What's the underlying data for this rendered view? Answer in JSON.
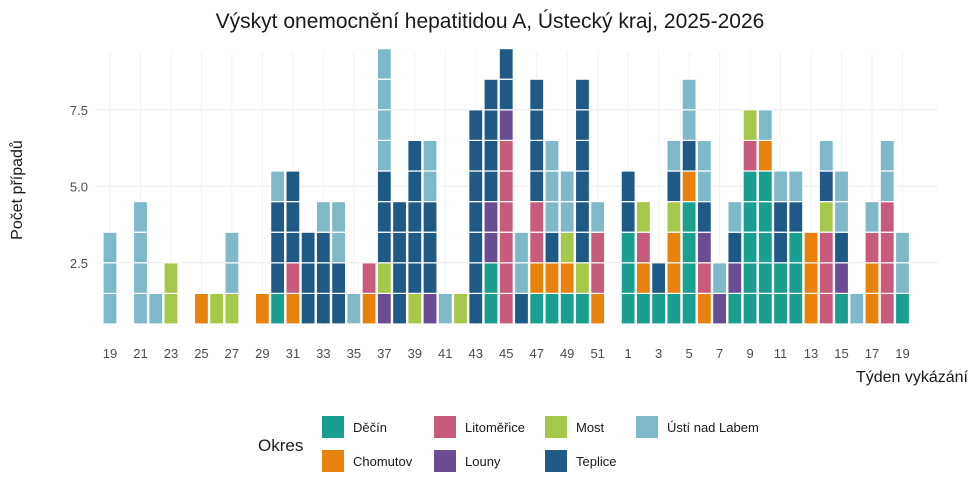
{
  "chart_data": {
    "type": "bar",
    "subtype": "stacked-unit-blocks",
    "title": "Výskyt onemocnění hepatitidou A, Ústecký kraj, 2025-2026",
    "xlabel": "Týden vykázání",
    "ylabel": "Počet případů",
    "ylim": [
      0,
      9.5
    ],
    "yticks": [
      2.5,
      5.0,
      7.5
    ],
    "ytick_labels": [
      "2.5",
      "5.0",
      "7.5"
    ],
    "grid": true,
    "legend": {
      "title": "Okres",
      "position": "bottom",
      "entries": [
        "Děčín",
        "Litoměřice",
        "Most",
        "Ústí nad Labem",
        "Chomutov",
        "Louny",
        "Teplice"
      ]
    },
    "colors": {
      "Děčín": "#1a9e8f",
      "Chomutov": "#e8820c",
      "Litoměřice": "#c85a7c",
      "Louny": "#6a4c93",
      "Most": "#a5c84a",
      "Teplice": "#1e5a85",
      "Ústí nad Labem": "#7fb9c9"
    },
    "x_tick_labels": [
      "19",
      "21",
      "23",
      "25",
      "27",
      "29",
      "31",
      "33",
      "35",
      "37",
      "39",
      "41",
      "43",
      "45",
      "47",
      "49",
      "51",
      "1",
      "3",
      "5",
      "7",
      "9",
      "11",
      "13",
      "15",
      "17",
      "19"
    ],
    "weeks": [
      {
        "label": "19",
        "cases": [
          "Ústí nad Labem",
          "Ústí nad Labem",
          "Ústí nad Labem"
        ]
      },
      {
        "label": "20",
        "cases": []
      },
      {
        "label": "21",
        "cases": [
          "Ústí nad Labem",
          "Ústí nad Labem",
          "Ústí nad Labem",
          "Ústí nad Labem"
        ]
      },
      {
        "label": "22",
        "cases": [
          "Ústí nad Labem"
        ]
      },
      {
        "label": "23",
        "cases": [
          "Most",
          "Most"
        ]
      },
      {
        "label": "24",
        "cases": []
      },
      {
        "label": "25",
        "cases": [
          "Chomutov"
        ]
      },
      {
        "label": "26",
        "cases": [
          "Most"
        ]
      },
      {
        "label": "27",
        "cases": [
          "Most",
          "Ústí nad Labem",
          "Ústí nad Labem"
        ]
      },
      {
        "label": "28",
        "cases": []
      },
      {
        "label": "29",
        "cases": [
          "Chomutov"
        ]
      },
      {
        "label": "30",
        "cases": [
          "Děčín",
          "Teplice",
          "Teplice",
          "Teplice",
          "Ústí nad Labem"
        ]
      },
      {
        "label": "31",
        "cases": [
          "Chomutov",
          "Litoměřice",
          "Teplice",
          "Teplice",
          "Teplice"
        ]
      },
      {
        "label": "32",
        "cases": [
          "Teplice",
          "Teplice",
          "Teplice"
        ]
      },
      {
        "label": "33",
        "cases": [
          "Teplice",
          "Teplice",
          "Teplice",
          "Ústí nad Labem"
        ]
      },
      {
        "label": "34",
        "cases": [
          "Teplice",
          "Teplice",
          "Ústí nad Labem",
          "Ústí nad Labem"
        ]
      },
      {
        "label": "35",
        "cases": [
          "Ústí nad Labem"
        ]
      },
      {
        "label": "36",
        "cases": [
          "Chomutov",
          "Litoměřice"
        ]
      },
      {
        "label": "37",
        "cases": [
          "Louny",
          "Most",
          "Teplice",
          "Teplice",
          "Teplice",
          "Ústí nad Labem",
          "Ústí nad Labem",
          "Ústí nad Labem",
          "Ústí nad Labem"
        ]
      },
      {
        "label": "38",
        "cases": [
          "Teplice",
          "Teplice",
          "Teplice",
          "Teplice"
        ]
      },
      {
        "label": "39",
        "cases": [
          "Most",
          "Teplice",
          "Teplice",
          "Teplice",
          "Teplice",
          "Teplice"
        ]
      },
      {
        "label": "40",
        "cases": [
          "Teplice",
          "Louny",
          "Teplice",
          "Teplice",
          "Ústí nad Labem",
          "Ústí nad Labem"
        ]
      },
      {
        "label": "41",
        "cases": [
          "Ústí nad Labem"
        ]
      },
      {
        "label": "42",
        "cases": [
          "Most"
        ]
      },
      {
        "label": "43",
        "cases": [
          "Teplice",
          "Teplice",
          "Teplice",
          "Teplice",
          "Teplice",
          "Teplice",
          "Teplice"
        ]
      },
      {
        "label": "44",
        "cases": [
          "Děčín",
          "Děčín",
          "Louny",
          "Louny",
          "Teplice",
          "Teplice",
          "Teplice",
          "Teplice"
        ]
      },
      {
        "label": "45",
        "cases": [
          "Litoměřice",
          "Litoměřice",
          "Litoměřice",
          "Litoměřice",
          "Litoměřice",
          "Litoměřice",
          "Louny",
          "Teplice",
          "Teplice"
        ]
      },
      {
        "label": "46",
        "cases": [
          "Teplice",
          "Ústí nad Labem",
          "Ústí nad Labem"
        ]
      },
      {
        "label": "47",
        "cases": [
          "Děčín",
          "Chomutov",
          "Litoměřice",
          "Litoměřice",
          "Teplice",
          "Teplice",
          "Teplice",
          "Teplice"
        ]
      },
      {
        "label": "48",
        "cases": [
          "Děčín",
          "Chomutov",
          "Teplice",
          "Ústí nad Labem",
          "Ústí nad Labem",
          "Ústí nad Labem"
        ]
      },
      {
        "label": "49",
        "cases": [
          "Děčín",
          "Chomutov",
          "Most",
          "Ústí nad Labem",
          "Ústí nad Labem"
        ]
      },
      {
        "label": "50",
        "cases": [
          "Děčín",
          "Most",
          "Teplice",
          "Teplice",
          "Teplice",
          "Teplice",
          "Teplice",
          "Teplice"
        ]
      },
      {
        "label": "51",
        "cases": [
          "Chomutov",
          "Litoměřice",
          "Litoměřice",
          "Ústí nad Labem"
        ]
      },
      {
        "label": "52",
        "cases": []
      },
      {
        "label": "1",
        "cases": [
          "Děčín",
          "Děčín",
          "Děčín",
          "Teplice",
          "Teplice"
        ]
      },
      {
        "label": "2",
        "cases": [
          "Děčín",
          "Chomutov",
          "Litoměřice",
          "Most"
        ]
      },
      {
        "label": "3",
        "cases": [
          "Děčín",
          "Teplice"
        ]
      },
      {
        "label": "4",
        "cases": [
          "Děčín",
          "Chomutov",
          "Chomutov",
          "Most",
          "Teplice",
          "Ústí nad Labem"
        ]
      },
      {
        "label": "5",
        "cases": [
          "Děčín",
          "Děčín",
          "Děčín",
          "Děčín",
          "Chomutov",
          "Teplice",
          "Ústí nad Labem",
          "Ústí nad Labem"
        ]
      },
      {
        "label": "6",
        "cases": [
          "Chomutov",
          "Litoměřice",
          "Louny",
          "Teplice",
          "Ústí nad Labem",
          "Ústí nad Labem"
        ]
      },
      {
        "label": "7",
        "cases": [
          "Louny",
          "Ústí nad Labem"
        ]
      },
      {
        "label": "8",
        "cases": [
          "Děčín",
          "Louny",
          "Teplice",
          "Ústí nad Labem"
        ]
      },
      {
        "label": "9",
        "cases": [
          "Děčín",
          "Děčín",
          "Děčín",
          "Děčín",
          "Děčín",
          "Litoměřice",
          "Most"
        ]
      },
      {
        "label": "10",
        "cases": [
          "Děčín",
          "Děčín",
          "Děčín",
          "Děčín",
          "Děčín",
          "Chomutov",
          "Ústí nad Labem"
        ]
      },
      {
        "label": "11",
        "cases": [
          "Děčín",
          "Děčín",
          "Teplice",
          "Teplice",
          "Ústí nad Labem"
        ]
      },
      {
        "label": "12",
        "cases": [
          "Děčín",
          "Děčín",
          "Děčín",
          "Teplice",
          "Ústí nad Labem"
        ]
      },
      {
        "label": "13",
        "cases": [
          "Chomutov",
          "Chomutov",
          "Chomutov"
        ]
      },
      {
        "label": "14",
        "cases": [
          "Litoměřice",
          "Litoměřice",
          "Litoměřice",
          "Most",
          "Teplice",
          "Ústí nad Labem"
        ]
      },
      {
        "label": "15",
        "cases": [
          "Děčín",
          "Louny",
          "Teplice",
          "Ústí nad Labem",
          "Ústí nad Labem"
        ]
      },
      {
        "label": "16",
        "cases": [
          "Ústí nad Labem"
        ]
      },
      {
        "label": "17",
        "cases": [
          "Chomutov",
          "Chomutov",
          "Litoměřice",
          "Ústí nad Labem"
        ]
      },
      {
        "label": "18",
        "cases": [
          "Litoměřice",
          "Litoměřice",
          "Litoměřice",
          "Litoměřice",
          "Ústí nad Labem",
          "Ústí nad Labem"
        ]
      },
      {
        "label": "19",
        "cases": [
          "Děčín",
          "Ústí nad Labem",
          "Ústí nad Labem"
        ]
      }
    ]
  }
}
